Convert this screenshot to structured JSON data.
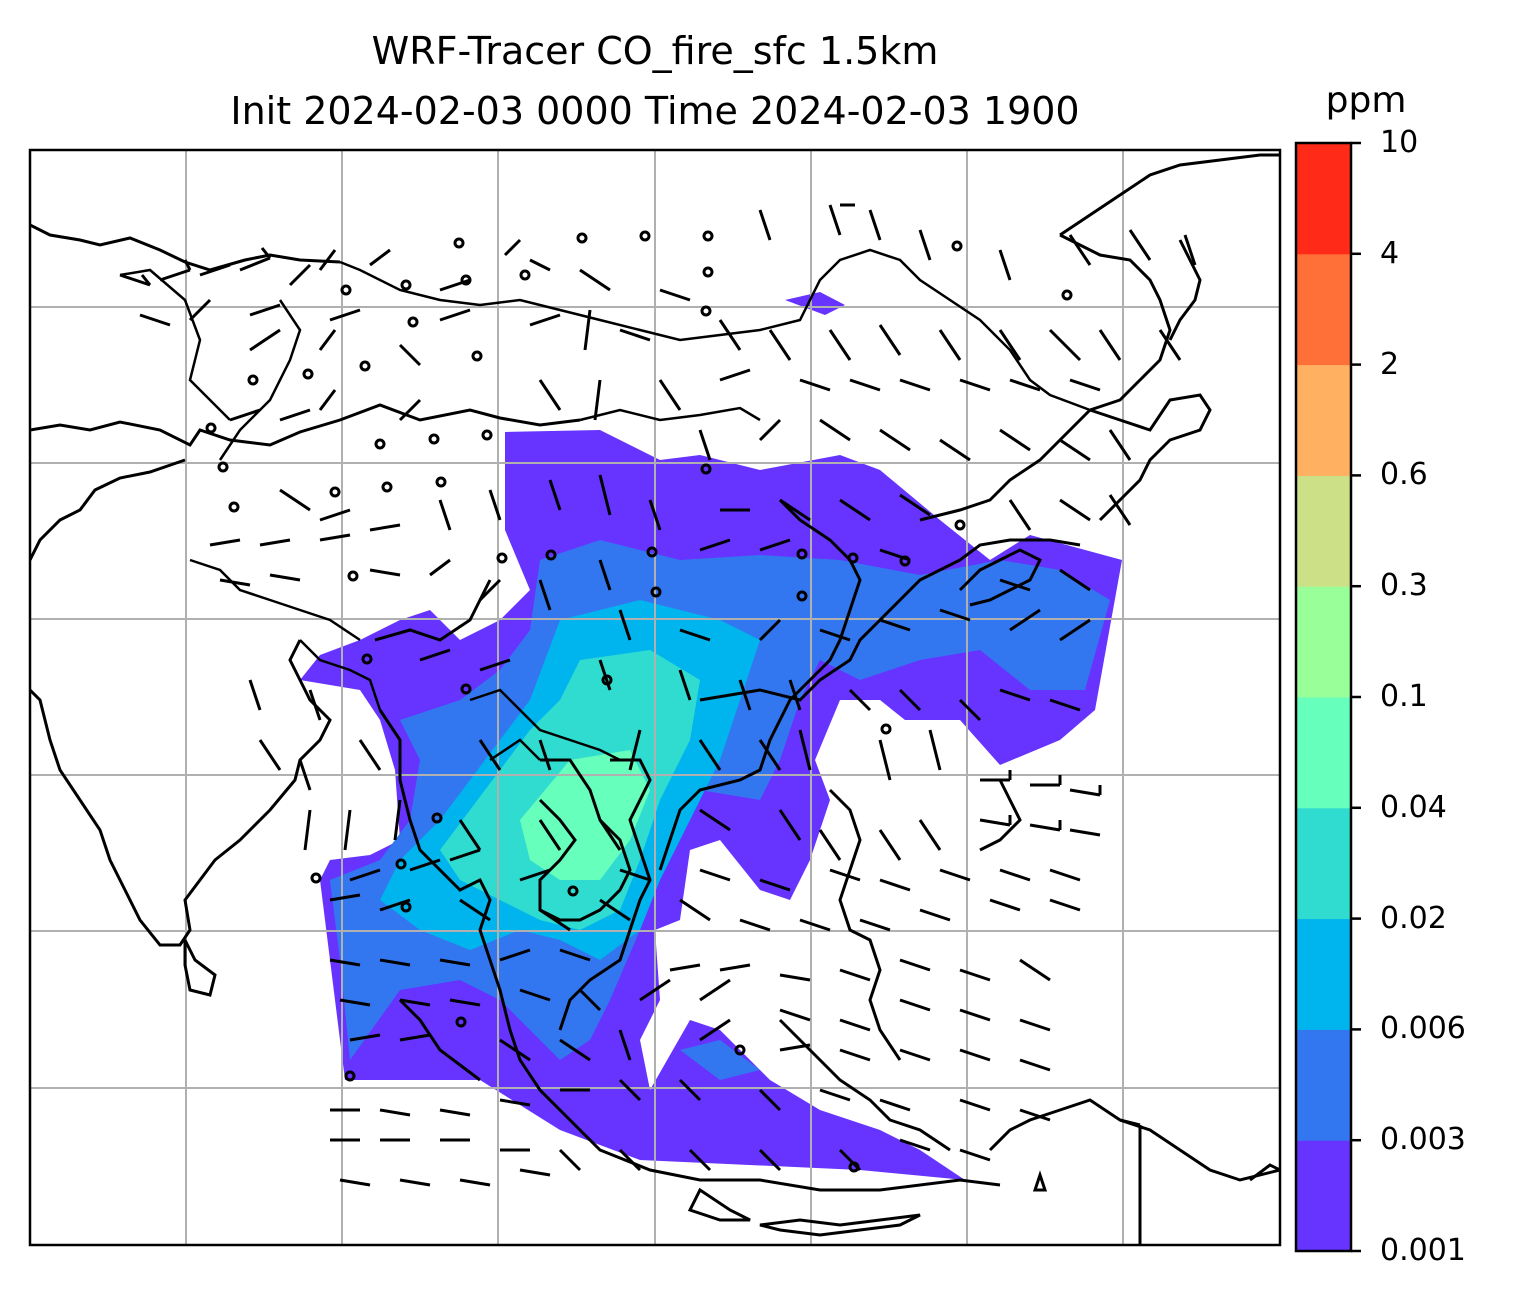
{
  "title": {
    "line1": "WRF-Tracer CO_fire_sfc 1.5km",
    "line2": "Init 2024-02-03 0000 Time 2024-02-03 1900"
  },
  "colorbar": {
    "unit": "ppm",
    "levels": [
      "0.001",
      "0.003",
      "0.006",
      "0.02",
      "0.04",
      "0.1",
      "0.3",
      "0.6",
      "2",
      "4",
      "10"
    ],
    "colors": [
      "#6633ff",
      "#3377f0",
      "#00b4ee",
      "#30dcd0",
      "#66ffbb",
      "#99ff99",
      "#cce088",
      "#ffb060",
      "#ff7038",
      "#ff2a18"
    ]
  },
  "map": {
    "gridlines": true,
    "overlays": [
      "coastlines",
      "country-borders",
      "wind-barbs"
    ]
  }
}
